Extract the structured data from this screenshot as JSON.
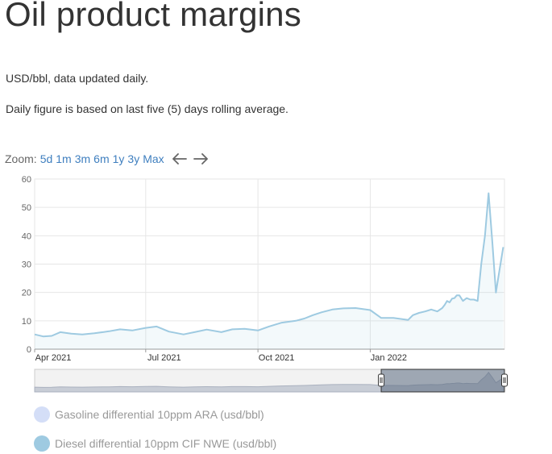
{
  "page": {
    "title": "Oil product margins",
    "unit_text": "USD/bbl, data updated daily.",
    "note_text": "Daily figure is based on last five (5) days rolling average."
  },
  "zoom": {
    "label": "Zoom:",
    "buttons": [
      "5d",
      "1m",
      "3m",
      "6m",
      "1y",
      "3y",
      "Max"
    ],
    "back_icon": "arrow-left-icon",
    "forward_icon": "arrow-right-icon"
  },
  "colors": {
    "diesel": "#9ecae1",
    "gasoline": "#d4def7",
    "link": "#3f7fbf"
  },
  "legend": {
    "items": [
      {
        "label": "Gasoline differential 10ppm ARA (usd/bbl)",
        "color": "#d4def7"
      },
      {
        "label": "Diesel differential 10ppm CIF NWE (usd/bbl)",
        "color": "#9ecae1"
      }
    ]
  },
  "chart_data": {
    "type": "area",
    "x_axis_type": "date",
    "xlim": [
      "2021-04-01",
      "2022-04-21"
    ],
    "ylim": [
      0,
      60
    ],
    "y_ticks": [
      0,
      10,
      20,
      30,
      40,
      50,
      60
    ],
    "y_tick_labels": [
      "0",
      "10",
      "20",
      "30",
      "40",
      "50",
      "60"
    ],
    "x_ticks": [
      "2021-04-01",
      "2021-07-01",
      "2021-10-01",
      "2022-01-01"
    ],
    "x_tick_labels": [
      "Apr 2021",
      "Jul 2021",
      "Oct 2021",
      "Jan 2022"
    ],
    "grid": true,
    "navigator": true,
    "series": [
      {
        "name": "Diesel differential 10ppm CIF NWE (usd/bbl)",
        "x": [
          "2021-04-01",
          "2021-04-08",
          "2021-04-15",
          "2021-04-22",
          "2021-05-01",
          "2021-05-10",
          "2021-05-20",
          "2021-06-01",
          "2021-06-10",
          "2021-06-20",
          "2021-07-01",
          "2021-07-10",
          "2021-07-20",
          "2021-08-01",
          "2021-08-10",
          "2021-08-20",
          "2021-09-01",
          "2021-09-10",
          "2021-09-20",
          "2021-10-01",
          "2021-10-10",
          "2021-10-20",
          "2021-11-01",
          "2021-11-08",
          "2021-11-15",
          "2021-11-22",
          "2021-12-01",
          "2021-12-10",
          "2021-12-20",
          "2022-01-01",
          "2022-01-10",
          "2022-01-20",
          "2022-02-01",
          "2022-02-05",
          "2022-02-10",
          "2022-02-15",
          "2022-02-20",
          "2022-02-25",
          "2022-03-01",
          "2022-03-03",
          "2022-03-05",
          "2022-03-07",
          "2022-03-09",
          "2022-03-11",
          "2022-03-13",
          "2022-03-15",
          "2022-03-18",
          "2022-03-21",
          "2022-03-24",
          "2022-03-27",
          "2022-03-30",
          "2022-04-02",
          "2022-04-05",
          "2022-04-08",
          "2022-04-11",
          "2022-04-14",
          "2022-04-17",
          "2022-04-20"
        ],
        "y": [
          5.2,
          4.5,
          4.7,
          6,
          5.5,
          5.2,
          5.6,
          6.3,
          7,
          6.6,
          7.5,
          8,
          6.2,
          5.2,
          6,
          6.9,
          6,
          7,
          7.2,
          6.6,
          8,
          9.3,
          10,
          10.8,
          12,
          13,
          14,
          14.4,
          14.5,
          13.8,
          11,
          11,
          10.3,
          12,
          12.8,
          13.3,
          14,
          13.3,
          14.5,
          15.6,
          17,
          16.5,
          17.8,
          18,
          19,
          19,
          17,
          18,
          17.5,
          17.5,
          17,
          30,
          40,
          55,
          38,
          20,
          28,
          36
        ]
      }
    ]
  }
}
